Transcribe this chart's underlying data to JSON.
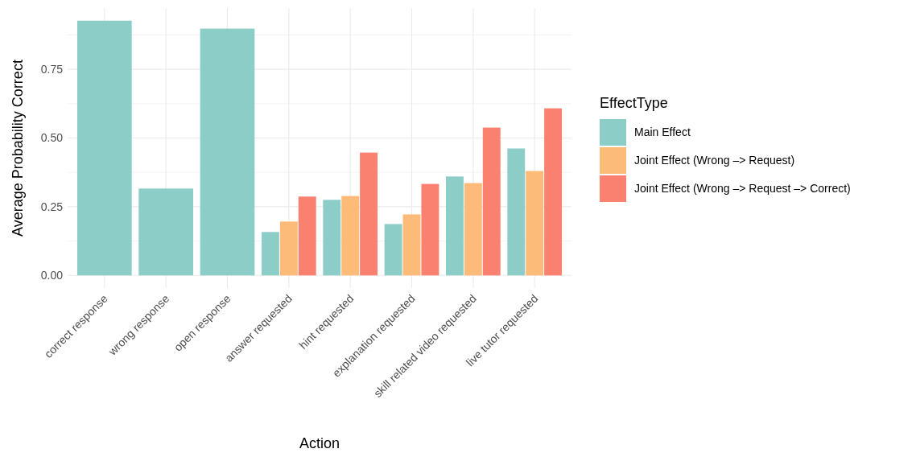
{
  "chart_data": {
    "type": "bar",
    "xlabel": "Action",
    "ylabel": "Average Probability Correct",
    "legend_title": "EffectType",
    "categories": [
      "correct response",
      "wrong response",
      "open response",
      "answer requested",
      "hint requested",
      "explanation requested",
      "skill related video requested",
      "live tutor requested"
    ],
    "series": [
      {
        "name": "Main Effect",
        "color": "#8dcdc8",
        "values": [
          0.927,
          0.316,
          0.898,
          0.158,
          0.275,
          0.187,
          0.36,
          0.462
        ]
      },
      {
        "name": "Joint Effect (Wrong –> Request)",
        "color": "#fdbb79",
        "values": [
          null,
          null,
          null,
          0.196,
          0.289,
          0.222,
          0.336,
          0.38
        ]
      },
      {
        "name": "Joint Effect (Wrong –> Request –> Correct)",
        "color": "#fa8070",
        "values": [
          null,
          null,
          null,
          0.287,
          0.447,
          0.333,
          0.538,
          0.608
        ]
      }
    ],
    "ylim": [
      -0.046,
      0.973
    ],
    "yticks": [
      {
        "value": 0,
        "label": "0.00"
      },
      {
        "value": 0.125,
        "label": null
      },
      {
        "value": 0.25,
        "label": "0.25"
      },
      {
        "value": 0.375,
        "label": null
      },
      {
        "value": 0.5,
        "label": "0.50"
      },
      {
        "value": 0.625,
        "label": null
      },
      {
        "value": 0.75,
        "label": "0.75"
      },
      {
        "value": 0.875,
        "label": null
      }
    ],
    "grid": true,
    "legend": "right"
  }
}
